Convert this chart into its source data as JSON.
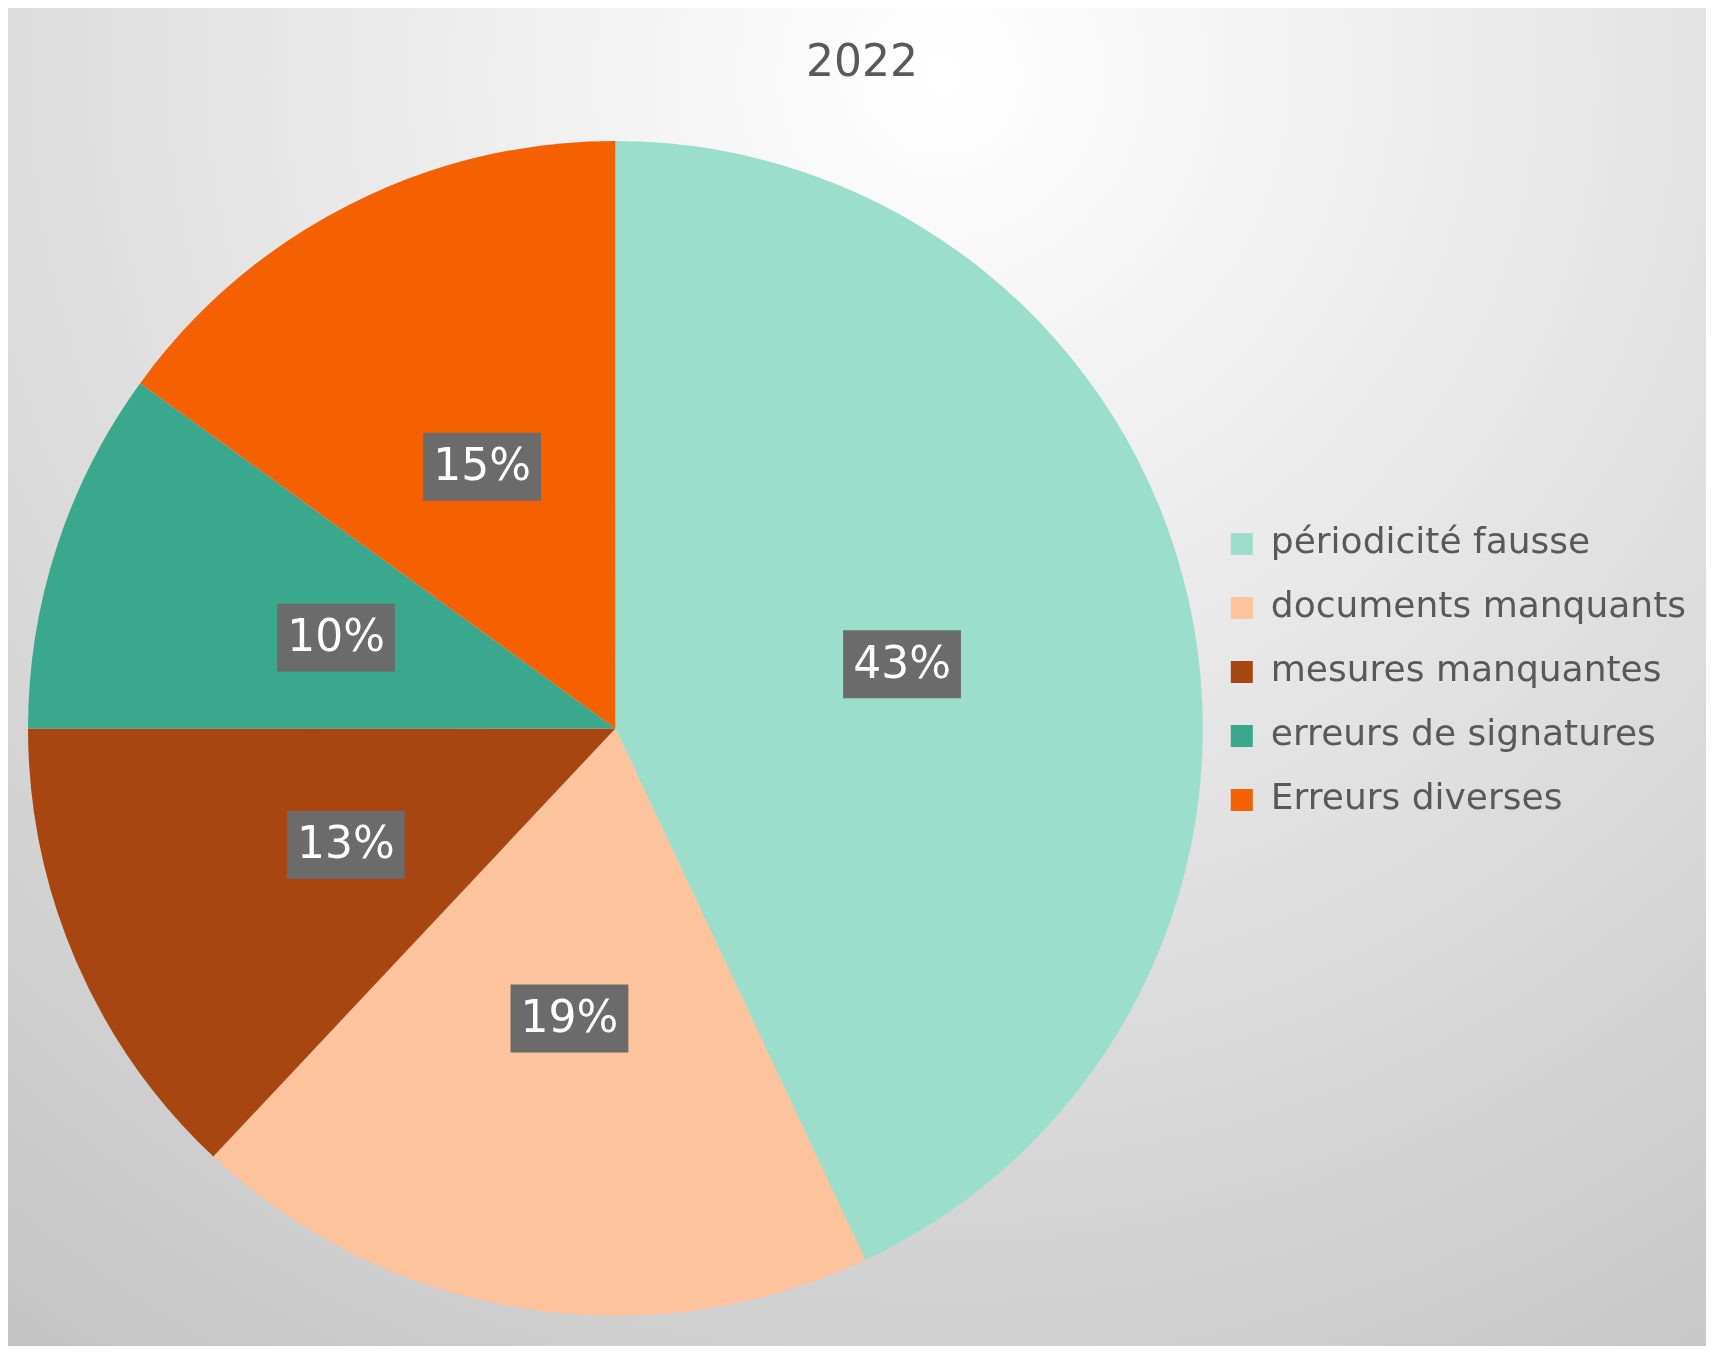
{
  "chart_data": {
    "type": "pie",
    "title": "2022",
    "categories": [
      "périodicité fausse",
      "documents manquants",
      "mesures manquantes",
      "erreurs de signatures",
      "Erreurs diverses"
    ],
    "values": [
      43,
      19,
      13,
      10,
      15
    ],
    "colors": [
      "#9adecb",
      "#fcc39c",
      "#a84612",
      "#3aa88c",
      "#f56100"
    ],
    "value_labels": [
      "43%",
      "19%",
      "13%",
      "10%",
      "15%"
    ],
    "legend": "right"
  }
}
